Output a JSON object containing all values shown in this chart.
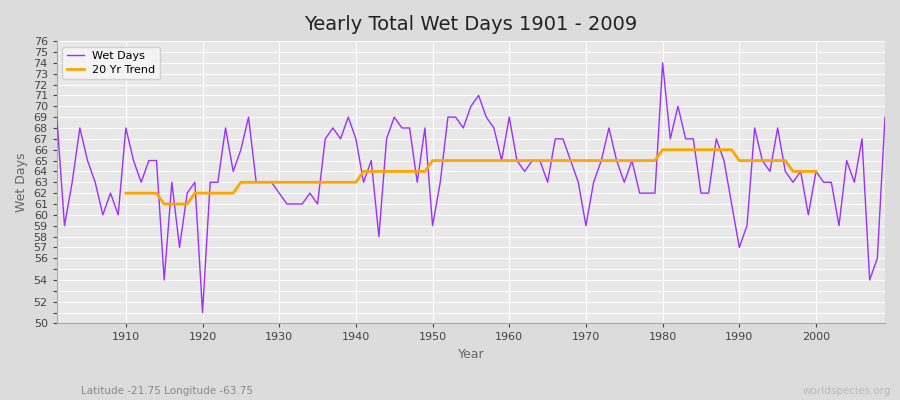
{
  "title": "Yearly Total Wet Days 1901 - 2009",
  "xlabel": "Year",
  "ylabel": "Wet Days",
  "subtitle": "Latitude -21.75 Longitude -63.75",
  "watermark": "worldspecies.org",
  "legend_wet": "Wet Days",
  "legend_trend": "20 Yr Trend",
  "wet_color": "#9B30FF",
  "trend_color": "#FFA500",
  "fig_bg_color": "#DCDCDC",
  "plot_bg_color": "#E8E8E8",
  "ylim": [
    50,
    76
  ],
  "xlim": [
    1901,
    2009
  ],
  "years": [
    1901,
    1902,
    1903,
    1904,
    1905,
    1906,
    1907,
    1908,
    1909,
    1910,
    1911,
    1912,
    1913,
    1914,
    1915,
    1916,
    1917,
    1918,
    1919,
    1920,
    1921,
    1922,
    1923,
    1924,
    1925,
    1926,
    1927,
    1928,
    1929,
    1930,
    1931,
    1932,
    1933,
    1934,
    1935,
    1936,
    1937,
    1938,
    1939,
    1940,
    1941,
    1942,
    1943,
    1944,
    1945,
    1946,
    1947,
    1948,
    1949,
    1950,
    1951,
    1952,
    1953,
    1954,
    1955,
    1956,
    1957,
    1958,
    1959,
    1960,
    1961,
    1962,
    1963,
    1964,
    1965,
    1966,
    1967,
    1968,
    1969,
    1970,
    1971,
    1972,
    1973,
    1974,
    1975,
    1976,
    1977,
    1978,
    1979,
    1980,
    1981,
    1982,
    1983,
    1984,
    1985,
    1986,
    1987,
    1988,
    1989,
    1990,
    1991,
    1992,
    1993,
    1994,
    1995,
    1996,
    1997,
    1998,
    1999,
    2000,
    2001,
    2002,
    2003,
    2004,
    2005,
    2006,
    2007,
    2008,
    2009
  ],
  "wet_days": [
    69,
    59,
    63,
    68,
    65,
    63,
    60,
    62,
    60,
    68,
    65,
    63,
    65,
    65,
    54,
    63,
    57,
    62,
    63,
    51,
    63,
    63,
    68,
    64,
    66,
    69,
    63,
    63,
    63,
    62,
    61,
    61,
    61,
    62,
    61,
    67,
    68,
    67,
    69,
    67,
    63,
    65,
    58,
    67,
    69,
    68,
    68,
    63,
    68,
    59,
    63,
    69,
    69,
    68,
    70,
    71,
    69,
    68,
    65,
    69,
    65,
    64,
    65,
    65,
    63,
    67,
    67,
    65,
    63,
    59,
    63,
    65,
    68,
    65,
    63,
    65,
    62,
    62,
    62,
    74,
    67,
    70,
    67,
    67,
    62,
    62,
    67,
    65,
    61,
    57,
    59,
    68,
    65,
    64,
    68,
    64,
    63,
    64,
    60,
    64,
    63,
    63,
    59,
    65,
    63,
    67,
    54,
    56,
    69
  ],
  "trend_years": [
    1910,
    1911,
    1912,
    1913,
    1914,
    1915,
    1916,
    1917,
    1918,
    1919,
    1920,
    1921,
    1922,
    1923,
    1924,
    1925,
    1926,
    1927,
    1928,
    1929,
    1930,
    1931,
    1932,
    1933,
    1934,
    1935,
    1936,
    1937,
    1938,
    1939,
    1940,
    1941,
    1942,
    1943,
    1944,
    1945,
    1946,
    1947,
    1948,
    1949,
    1950,
    1951,
    1952,
    1953,
    1954,
    1955,
    1956,
    1957,
    1958,
    1959,
    1960,
    1961,
    1962,
    1963,
    1964,
    1965,
    1966,
    1967,
    1968,
    1969,
    1970,
    1971,
    1972,
    1973,
    1974,
    1975,
    1976,
    1977,
    1978,
    1979,
    1980,
    1981,
    1982,
    1983,
    1984,
    1985,
    1986,
    1987,
    1988,
    1989,
    1990,
    1991,
    1992,
    1993,
    1994,
    1995,
    1996,
    1997,
    1998,
    1999,
    2000
  ],
  "trend_days": [
    62,
    62,
    62,
    62,
    62,
    61,
    61,
    61,
    61,
    62,
    62,
    62,
    62,
    62,
    62,
    63,
    63,
    63,
    63,
    63,
    63,
    63,
    63,
    63,
    63,
    63,
    63,
    63,
    63,
    63,
    63,
    64,
    64,
    64,
    64,
    64,
    64,
    64,
    64,
    64,
    65,
    65,
    65,
    65,
    65,
    65,
    65,
    65,
    65,
    65,
    65,
    65,
    65,
    65,
    65,
    65,
    65,
    65,
    65,
    65,
    65,
    65,
    65,
    65,
    65,
    65,
    65,
    65,
    65,
    65,
    66,
    66,
    66,
    66,
    66,
    66,
    66,
    66,
    66,
    66,
    65,
    65,
    65,
    65,
    65,
    65,
    65,
    64,
    64,
    64,
    64
  ],
  "ytick_labels": [
    50,
    52,
    54,
    56,
    57,
    58,
    59,
    60,
    61,
    62,
    63,
    64,
    65,
    66,
    67,
    68,
    69,
    70,
    71,
    72,
    73,
    74,
    75,
    76
  ],
  "title_fontsize": 14,
  "label_fontsize": 9,
  "tick_fontsize": 8
}
